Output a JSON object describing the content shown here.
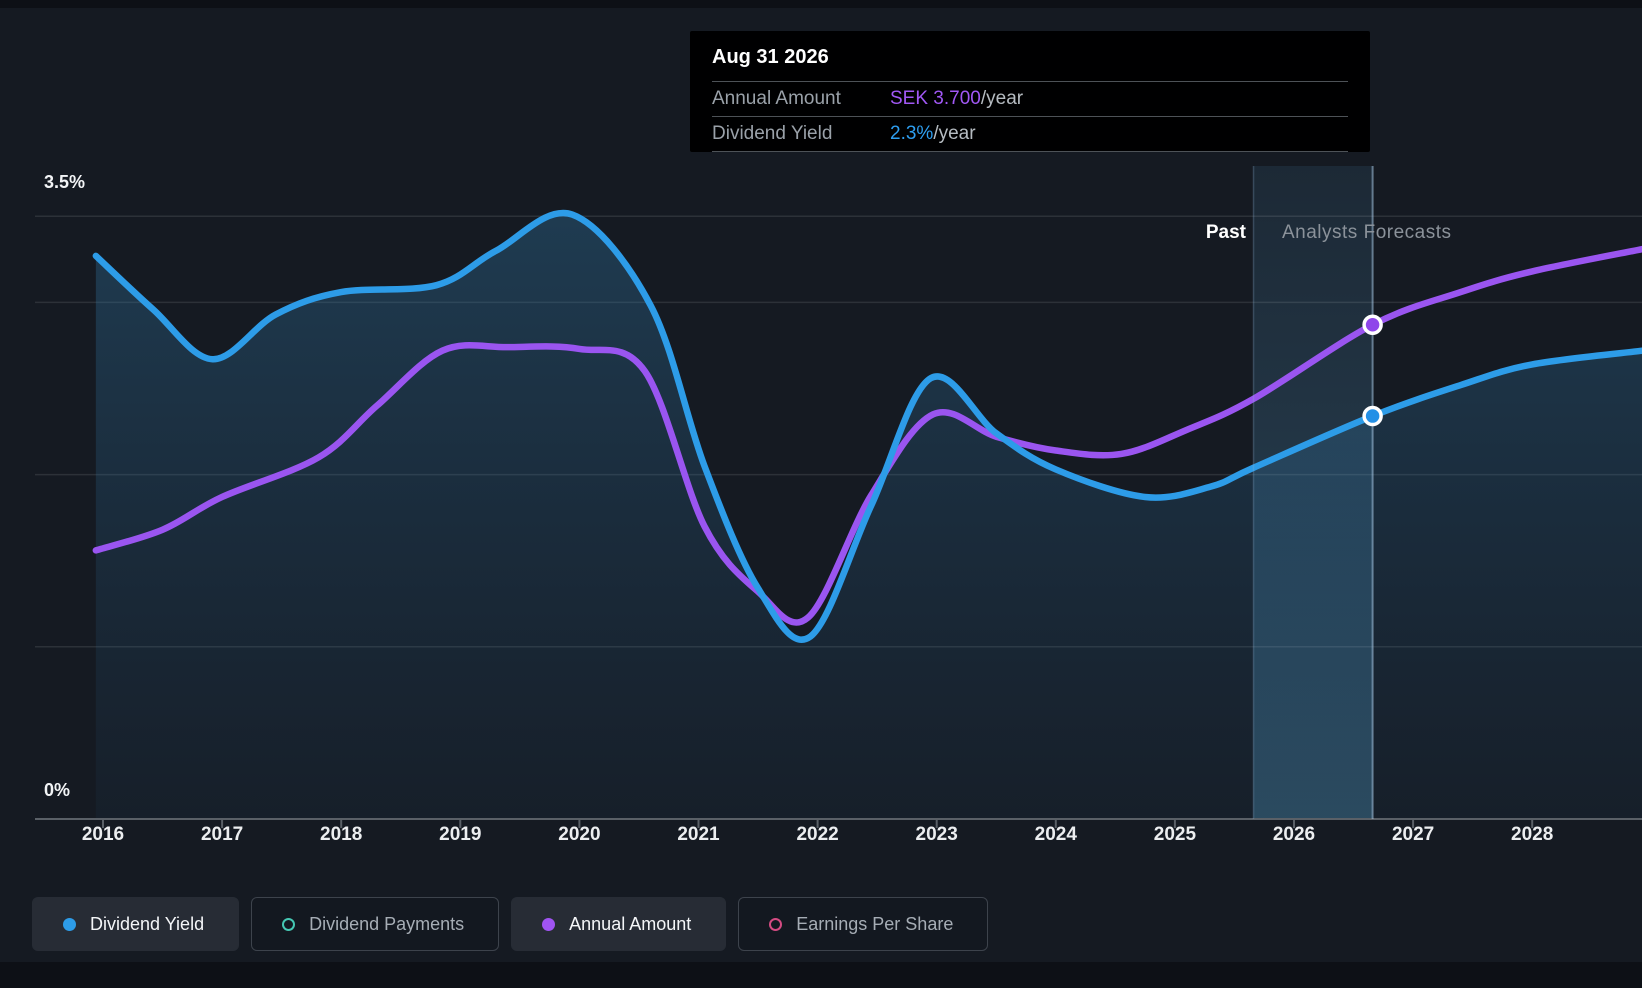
{
  "chart": {
    "y_top_label": "3.5%",
    "y_bottom_label": "0%",
    "past_label": "Past",
    "forecast_label": "Analysts Forecasts"
  },
  "tooltip": {
    "title": "Aug 31 2026",
    "rows": [
      {
        "label": "Annual Amount",
        "value": "SEK 3.700",
        "unit": "/year",
        "value_color": "#a158f5"
      },
      {
        "label": "Dividend Yield",
        "value": "2.3%",
        "unit": "/year",
        "value_color": "#2e9ef0"
      }
    ]
  },
  "legend": {
    "items": [
      {
        "label": "Dividend Yield",
        "color": "#2d9ce8",
        "marker": "filled",
        "active": true
      },
      {
        "label": "Dividend Payments",
        "color": "#45c7b3",
        "marker": "outline",
        "active": false
      },
      {
        "label": "Annual Amount",
        "color": "#a054f2",
        "marker": "filled",
        "active": true
      },
      {
        "label": "Earnings Per Share",
        "color": "#d44b82",
        "marker": "outline",
        "active": false
      }
    ]
  },
  "chart_data": {
    "type": "area",
    "title": "Dividend yield history and forecast",
    "x_axis": {
      "ticks": [
        "2016",
        "2017",
        "2018",
        "2019",
        "2020",
        "2021",
        "2022",
        "2023",
        "2024",
        "2025",
        "2026",
        "2027",
        "2028"
      ]
    },
    "y_axis": {
      "range_pct": [
        0,
        3.5
      ],
      "gridlines_pct": [
        3.5,
        3,
        2,
        1
      ],
      "top_label": "3.5%",
      "bottom_label": "0%",
      "grid": true
    },
    "legend_position": "bottom",
    "forecast_divider_year": 2025.66,
    "hover_year": 2026.66,
    "hover_date": "Aug 31 2026",
    "series": [
      {
        "name": "Dividend Yield",
        "color": "#2d9ce8",
        "style": "line-with-area",
        "unit": "%",
        "points": [
          [
            2015.94,
            3.27
          ],
          [
            2016.42,
            2.96
          ],
          [
            2016.92,
            2.67
          ],
          [
            2017.45,
            2.93
          ],
          [
            2018.0,
            3.06
          ],
          [
            2018.8,
            3.1
          ],
          [
            2019.3,
            3.3
          ],
          [
            2019.94,
            3.51
          ],
          [
            2020.6,
            2.98
          ],
          [
            2021.05,
            2.05
          ],
          [
            2021.5,
            1.34
          ],
          [
            2021.94,
            1.06
          ],
          [
            2022.45,
            1.82
          ],
          [
            2022.95,
            2.56
          ],
          [
            2023.5,
            2.24
          ],
          [
            2024.0,
            2.03
          ],
          [
            2024.75,
            1.87
          ],
          [
            2025.3,
            1.93
          ],
          [
            2025.66,
            2.04
          ],
          [
            2026.66,
            2.34
          ],
          [
            2027.4,
            2.52
          ],
          [
            2028.0,
            2.64
          ],
          [
            2028.93,
            2.72
          ]
        ]
      },
      {
        "name": "Annual Amount",
        "color": "#9a55f0",
        "style": "line",
        "unit": "SEK/year (plotted on yield scale)",
        "points": [
          [
            2015.94,
            1.56
          ],
          [
            2016.5,
            1.68
          ],
          [
            2017.0,
            1.87
          ],
          [
            2017.81,
            2.1
          ],
          [
            2018.3,
            2.4
          ],
          [
            2018.85,
            2.72
          ],
          [
            2019.4,
            2.74
          ],
          [
            2020.0,
            2.73
          ],
          [
            2020.55,
            2.6
          ],
          [
            2021.05,
            1.7
          ],
          [
            2021.5,
            1.32
          ],
          [
            2021.92,
            1.17
          ],
          [
            2022.45,
            1.88
          ],
          [
            2022.97,
            2.35
          ],
          [
            2023.5,
            2.22
          ],
          [
            2024.0,
            2.14
          ],
          [
            2024.55,
            2.12
          ],
          [
            2025.1,
            2.26
          ],
          [
            2025.66,
            2.44
          ],
          [
            2026.66,
            2.87
          ],
          [
            2027.4,
            3.06
          ],
          [
            2028.0,
            3.18
          ],
          [
            2028.93,
            3.31
          ]
        ]
      }
    ],
    "markers": [
      {
        "series": "Annual Amount",
        "x": 2026.66,
        "y": 2.87,
        "color": "#8f46ea",
        "tooltip_value": "SEK 3.700/year"
      },
      {
        "series": "Dividend Yield",
        "x": 2026.66,
        "y": 2.34,
        "color": "#2490e6",
        "tooltip_value": "2.3%/year"
      }
    ]
  }
}
